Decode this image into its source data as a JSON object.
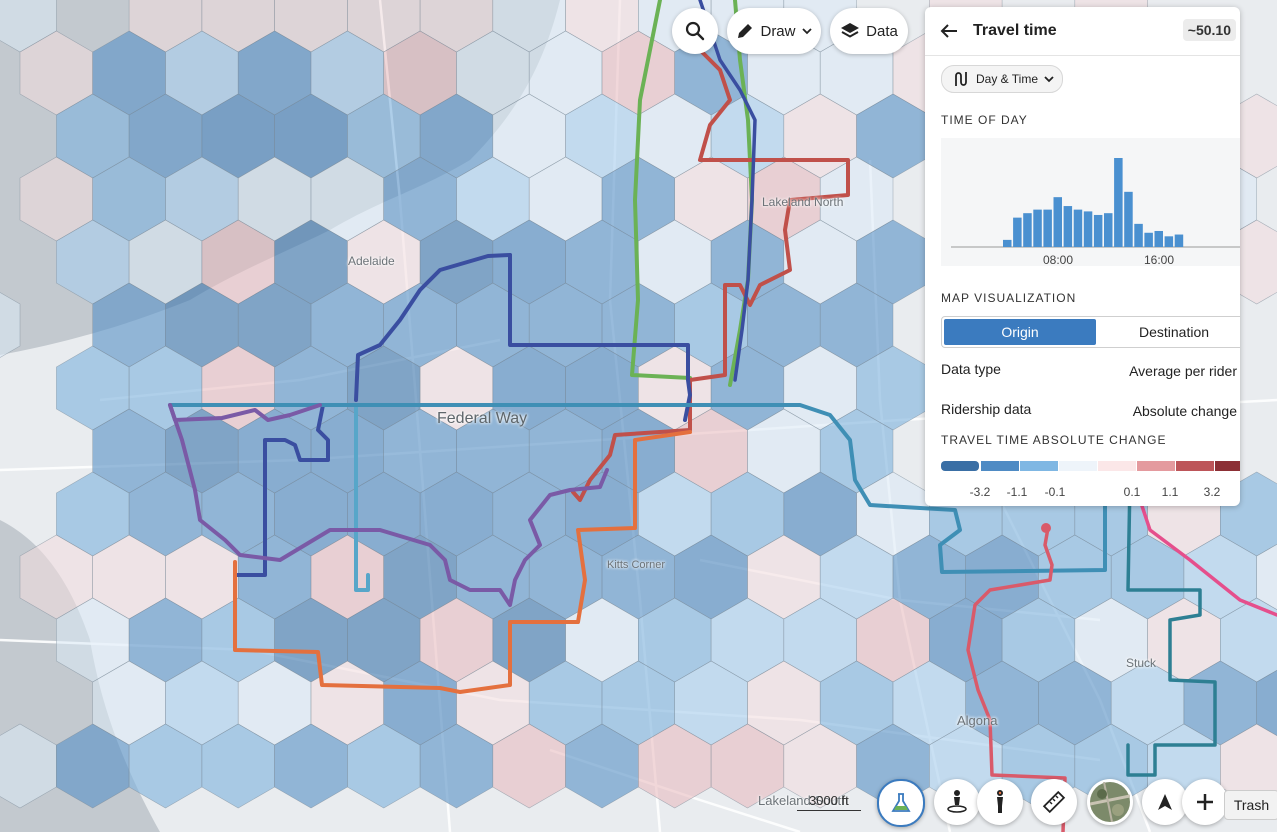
{
  "toolbar": {
    "search_icon": "search-icon",
    "draw_label": "Draw",
    "data_label": "Data"
  },
  "panel": {
    "title": "Travel time",
    "value": "~50.10",
    "chip_label": "Day & Time",
    "time_of_day_heading": "TIME OF DAY",
    "histogram": {
      "type": "bar",
      "tick_labels": [
        "08:00",
        "16:00"
      ],
      "values": [
        0.08,
        0.33,
        0.38,
        0.42,
        0.42,
        0.56,
        0.46,
        0.42,
        0.4,
        0.36,
        0.38,
        1.0,
        0.62,
        0.26,
        0.16,
        0.18,
        0.12,
        0.14
      ],
      "bar_color": "#4a90d0"
    },
    "map_vis_heading": "MAP VISUALIZATION",
    "origin_label": "Origin",
    "destination_label": "Destination",
    "data_type_label": "Data type",
    "data_type_value": "Average per rider",
    "ridership_label": "Ridership data",
    "ridership_value": "Absolute change",
    "legend_heading": "TRAVEL TIME ABSOLUTE CHANGE",
    "legend_colors": [
      "#3a6fa5",
      "#4f8bc4",
      "#7fb7e3",
      "#eef4fa",
      "#fbe7e8",
      "#e49a9e",
      "#bd5559",
      "#8c2f35"
    ],
    "legend_labels": [
      "-3.2",
      "-1.1",
      "-0.1",
      "0.1",
      "1.1",
      "3.2"
    ]
  },
  "map": {
    "place_labels": {
      "adelaide": "Adelaide",
      "federal_way": "Federal Way",
      "lakeland_north": "Lakeland North",
      "kitts_corner": "Kitts Corner",
      "stuck": "Stuck",
      "algona": "Algona",
      "lakeland_south": "Lakeland South"
    },
    "scale_label": "3000 ft"
  },
  "bottom_tools": {
    "trash_label": "Trash"
  }
}
